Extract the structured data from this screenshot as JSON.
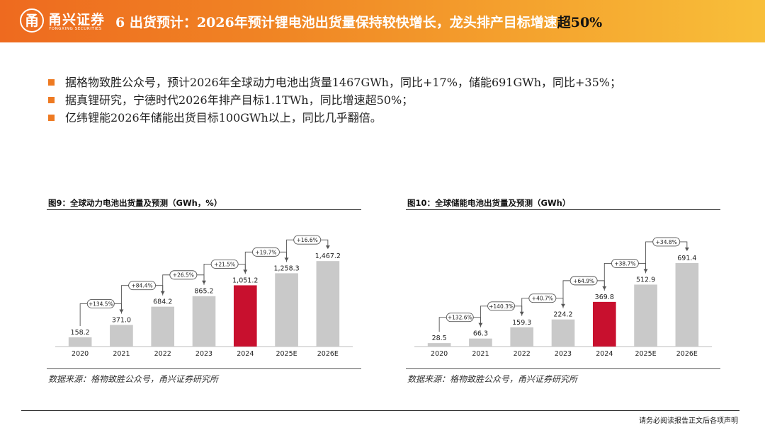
{
  "header": {
    "logo_mark": "甬",
    "logo_cn": "甬兴证券",
    "logo_en": "YONGXING SECURITIES",
    "title_main": "6 出货预计：2026年预计锂电池出货量保持较快增长，龙头排产目标增速",
    "title_tail": "超50%"
  },
  "bullets": [
    "据格物致胜公众号，预计2026年全球动力电池出货量1467GWh，同比+17%，储能691GWh，同比+35%；",
    "据真锂研究，宁德时代2026年排产目标1.1TWh，同比增速超50%；",
    "亿纬锂能2026年储能出货目标100GWh以上，同比几乎翻倍。"
  ],
  "colors": {
    "bar_gray": "#c9c9c9",
    "bar_highlight": "#c8102e",
    "accent_orange": "#ee7a22"
  },
  "figures": [
    {
      "caption": "图9：全球动力电池出货量及预测（GWh，%）",
      "source": "数据来源：格物致胜公众号，甬兴证券研究所"
    },
    {
      "caption": "图10：全球储能电池出货量及预测（GWh）",
      "source": "数据来源：格物致胜公众号，甬兴证券研究所"
    }
  ],
  "chart_data": [
    {
      "type": "bar",
      "title": "图9：全球动力电池出货量及预测（GWh，%）",
      "categories": [
        "2020",
        "2021",
        "2022",
        "2023",
        "2024",
        "2025E",
        "2026E"
      ],
      "values": [
        158.2,
        371.0,
        684.2,
        865.2,
        1051.2,
        1258.3,
        1467.2
      ],
      "value_labels": [
        "158.2",
        "371.0",
        "684.2",
        "865.2",
        "1,051.2",
        "1,258.3",
        "1,467.2"
      ],
      "growth_labels": [
        "+134.5%",
        "+84.4%",
        "+26.5%",
        "+21.5%",
        "+19.7%",
        "+16.6%"
      ],
      "highlight_index": 4,
      "ylim": [
        0,
        1700
      ],
      "grid": false,
      "legend": "none"
    },
    {
      "type": "bar",
      "title": "图10：全球储能电池出货量及预测（GWh）",
      "categories": [
        "2020",
        "2021",
        "2022",
        "2023",
        "2024",
        "2025E",
        "2026E"
      ],
      "values": [
        28.5,
        66.3,
        159.3,
        224.2,
        369.8,
        512.9,
        691.4
      ],
      "value_labels": [
        "28.5",
        "66.3",
        "159.3",
        "224.2",
        "369.8",
        "512.9",
        "691.4"
      ],
      "growth_labels": [
        "+132.6%",
        "+140.3%",
        "+40.7%",
        "+64.9%",
        "+38.7%",
        "+34.8%"
      ],
      "highlight_index": 4,
      "ylim": [
        0,
        820
      ],
      "grid": false,
      "legend": "none"
    }
  ],
  "footer": {
    "note": "请务必阅读报告正文后各项声明"
  }
}
